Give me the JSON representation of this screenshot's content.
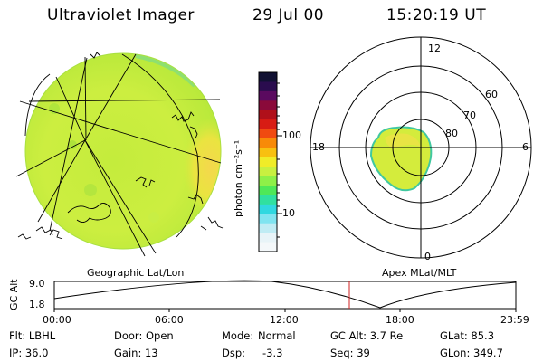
{
  "header": {
    "title": "Ultraviolet Imager",
    "date": "29 Jul 00",
    "time": "15:20:19 UT"
  },
  "geo_panel": {
    "label": "Geographic Lat/Lon"
  },
  "colorbar": {
    "label": "photon cm⁻²s⁻¹",
    "tick_100": "100",
    "tick_10": "10",
    "colors": [
      "#111133",
      "#2a0c4e",
      "#5a0a5f",
      "#8a0a3a",
      "#b0101a",
      "#d81c14",
      "#f04a10",
      "#f88a08",
      "#f8c010",
      "#f0ec28",
      "#c8f040",
      "#8ef048",
      "#4ee858",
      "#30e0a0",
      "#30d8e0",
      "#80e4f0",
      "#c0ecf4",
      "#e8f4f8",
      "#f4f8fa"
    ]
  },
  "polar_panel": {
    "label": "Apex MLat/MLT",
    "mlt_12": "12",
    "mlt_18": "18",
    "mlt_6": "6",
    "mlt_0": "0",
    "lat_60": "60",
    "lat_70": "70",
    "lat_80": "80"
  },
  "orbit_plot": {
    "ylabel": "GC Alt",
    "y_top": "9.0",
    "y_bottom": "1.8",
    "x_ticks": [
      "00:00",
      "06:00",
      "12:00",
      "18:00",
      "23:59"
    ],
    "current_time_marker": "15:20"
  },
  "info": {
    "filter": "Flt: LBHL",
    "ip": "IP: 36.0",
    "door": "Door: Open",
    "gain": "Gain: 13",
    "mode_label": "Mode:",
    "mode_value": "Normal",
    "dsp_label": "Dsp:",
    "dsp_value": "-3.3",
    "gc_alt": "GC Alt: 3.7 Re",
    "seq": "Seq: 39",
    "glat": "GLat: 85.3",
    "glon": "GLon: 349.7"
  }
}
